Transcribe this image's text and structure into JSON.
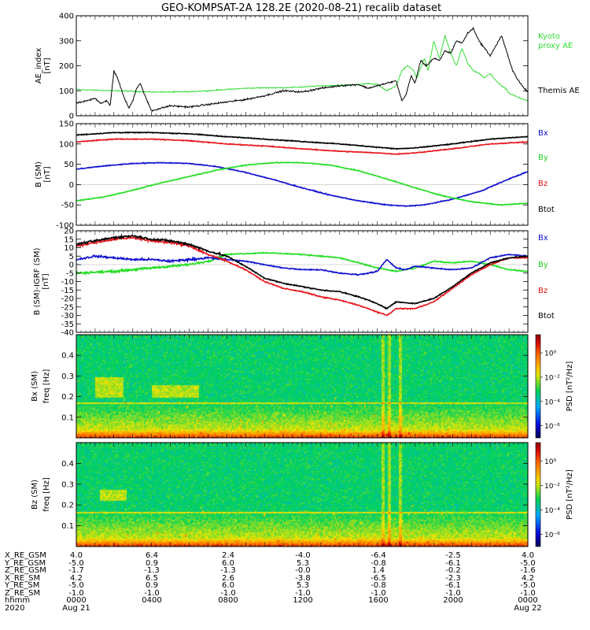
{
  "title": "GEO-KOMPSAT-2A 128.2E (2020-08-21) recalib dataset",
  "colors": {
    "black": "#000000",
    "red": "#e8151b",
    "green": "#22dd22",
    "blue": "#1010d0",
    "kyoto": "#33dd33",
    "label_blue": "#1010d0",
    "label_green": "#22cc22",
    "label_red": "#e01010"
  },
  "chart_data": [
    {
      "type": "line",
      "id": "ae",
      "ylabel": [
        "AE_index",
        "[nT]"
      ],
      "ylim": [
        0,
        400
      ],
      "yticks": [
        0,
        100,
        200,
        300,
        400
      ],
      "x_hours": [
        0,
        24
      ],
      "legend": [
        {
          "label": "Kyoto",
          "color": "kyoto"
        },
        {
          "label": "proxy AE",
          "color": "kyoto"
        },
        {
          "label": "Themis AE",
          "color": "black"
        }
      ],
      "series": [
        {
          "name": "Kyoto proxy AE",
          "color": "kyoto",
          "width": 1,
          "x": [
            0,
            1,
            2,
            3,
            4,
            5,
            6,
            7,
            8,
            9,
            10,
            11,
            12,
            13,
            14,
            15,
            15.5,
            16,
            16.5,
            17,
            17.3,
            17.6,
            17.9,
            18.1,
            18.5,
            18.7,
            19.0,
            19.3,
            19.6,
            19.9,
            20.2,
            20.5,
            20.8,
            21.1,
            21.4,
            21.7,
            22.0,
            22.3,
            22.6,
            22.8,
            23.0,
            23.3,
            23.6,
            24
          ],
          "y": [
            105,
            102,
            100,
            98,
            95,
            95,
            96,
            100,
            105,
            110,
            112,
            112,
            115,
            120,
            122,
            125,
            130,
            125,
            100,
            120,
            180,
            200,
            185,
            150,
            230,
            180,
            300,
            230,
            320,
            250,
            200,
            270,
            210,
            180,
            170,
            150,
            170,
            140,
            120,
            110,
            90,
            80,
            70,
            60
          ]
        },
        {
          "name": "Themis AE",
          "color": "black",
          "width": 1,
          "x": [
            0,
            0.6,
            1,
            1.3,
            1.6,
            1.8,
            2.0,
            2.2,
            2.5,
            2.8,
            3.0,
            3.2,
            3.4,
            3.7,
            4.0,
            5,
            6,
            7,
            8,
            9,
            10,
            11,
            12,
            13,
            14,
            15,
            15.5,
            16,
            16.5,
            17,
            17.3,
            17.5,
            17.8,
            18.0,
            18.3,
            18.6,
            19.0,
            19.3,
            19.6,
            19.9,
            20.2,
            20.5,
            20.8,
            21.1,
            21.4,
            21.7,
            22.0,
            22.3,
            22.6,
            22.9,
            23.2,
            23.5,
            23.8,
            24
          ],
          "y": [
            50,
            60,
            70,
            50,
            60,
            40,
            180,
            150,
            80,
            30,
            60,
            110,
            130,
            70,
            20,
            40,
            35,
            45,
            55,
            65,
            80,
            100,
            95,
            110,
            120,
            125,
            110,
            120,
            130,
            140,
            60,
            80,
            160,
            130,
            220,
            200,
            230,
            220,
            260,
            250,
            300,
            290,
            330,
            350,
            300,
            270,
            240,
            280,
            320,
            250,
            180,
            140,
            110,
            95
          ]
        }
      ]
    },
    {
      "type": "line",
      "id": "bsm",
      "ylabel": [
        "B (SM)",
        "[nT]"
      ],
      "ylim": [
        -100,
        150
      ],
      "yticks": [
        -100,
        -50,
        0,
        50,
        100,
        150
      ],
      "x_hours": [
        0,
        24
      ],
      "legend": [
        {
          "label": "Bx",
          "color": "label_blue"
        },
        {
          "label": "By",
          "color": "label_green"
        },
        {
          "label": "Bz",
          "color": "label_red"
        },
        {
          "label": "Btot",
          "color": "black"
        }
      ],
      "series": [
        {
          "name": "Btot",
          "color": "black",
          "width": 1.6,
          "x": [
            0,
            2,
            4,
            6,
            8,
            10,
            12,
            14,
            16,
            17,
            18,
            20,
            22,
            24
          ],
          "y": [
            122,
            128,
            128,
            125,
            118,
            112,
            106,
            100,
            92,
            88,
            90,
            100,
            112,
            118
          ]
        },
        {
          "name": "Bz",
          "color": "red",
          "width": 1.6,
          "x": [
            0,
            2,
            4,
            6,
            8,
            10,
            12,
            14,
            16,
            17,
            18,
            20,
            22,
            24
          ],
          "y": [
            105,
            112,
            112,
            108,
            100,
            95,
            88,
            82,
            78,
            75,
            78,
            88,
            100,
            105
          ]
        },
        {
          "name": "Bx",
          "color": "blue",
          "width": 1.6,
          "x": [
            0,
            1.5,
            3,
            4.5,
            6,
            7.5,
            9,
            10.5,
            12,
            13.5,
            15,
            16.5,
            17.5,
            18.5,
            20,
            21.5,
            23,
            24
          ],
          "y": [
            38,
            46,
            52,
            54,
            52,
            44,
            30,
            12,
            -8,
            -26,
            -40,
            -50,
            -53,
            -50,
            -36,
            -16,
            14,
            32
          ]
        },
        {
          "name": "By",
          "color": "green",
          "width": 1.6,
          "x": [
            0,
            1.5,
            3,
            4.5,
            6,
            7.5,
            9,
            10.5,
            12,
            13.5,
            15,
            16.5,
            18,
            19.5,
            21,
            22.5,
            24
          ],
          "y": [
            -40,
            -30,
            -14,
            4,
            20,
            36,
            48,
            54,
            54,
            48,
            34,
            14,
            -8,
            -28,
            -42,
            -50,
            -46
          ]
        }
      ]
    },
    {
      "type": "line",
      "id": "dbsm",
      "ylabel": [
        "B (SM)-IGRF (SM)",
        "[nT]"
      ],
      "ylim": [
        -40,
        20
      ],
      "yticks": [
        -40,
        -35,
        -30,
        -25,
        -20,
        -15,
        -10,
        -5,
        0,
        5,
        10,
        15,
        20
      ],
      "x_hours": [
        0,
        24
      ],
      "legend": [
        {
          "label": "Bx",
          "color": "label_blue"
        },
        {
          "label": "By",
          "color": "label_green"
        },
        {
          "label": "Bz",
          "color": "label_red"
        },
        {
          "label": "Btot",
          "color": "black"
        }
      ],
      "series": [
        {
          "name": "By",
          "color": "green",
          "width": 1.6,
          "x": [
            0,
            2,
            4,
            6,
            7,
            8,
            10,
            12,
            14,
            15,
            16,
            17,
            18,
            19,
            20,
            21,
            22,
            23,
            24
          ],
          "y": [
            -5,
            -4,
            -2,
            0,
            2,
            6,
            7,
            6,
            4,
            1,
            -2,
            -4,
            -2,
            2,
            1,
            2,
            0,
            -3,
            -4
          ]
        },
        {
          "name": "Bx",
          "color": "blue",
          "width": 1.6,
          "x": [
            0,
            1,
            2,
            3,
            4,
            5,
            6,
            7,
            8,
            9,
            10,
            11,
            12,
            13,
            14,
            15,
            16,
            16.5,
            17,
            17.5,
            18,
            19,
            20,
            21,
            22,
            23,
            24
          ],
          "y": [
            3,
            5,
            4,
            3,
            3,
            2,
            3,
            4,
            3,
            2,
            0,
            -2,
            -3,
            -3,
            -5,
            -6,
            -4,
            3,
            -2,
            -3,
            -1,
            -2,
            -3,
            -2,
            4,
            6,
            5
          ]
        },
        {
          "name": "Bz",
          "color": "red",
          "width": 1.6,
          "x": [
            0,
            1,
            2,
            3,
            4,
            5,
            6,
            7,
            8,
            9,
            10,
            11,
            12,
            13,
            14,
            15,
            16,
            16.5,
            17,
            18,
            19,
            20,
            21,
            22,
            23,
            24
          ],
          "y": [
            11,
            13,
            15,
            16,
            14,
            13,
            11,
            6,
            2,
            -3,
            -10,
            -14,
            -16,
            -19,
            -21,
            -24,
            -28,
            -30,
            -26,
            -26,
            -22,
            -14,
            -6,
            0,
            4,
            4
          ]
        },
        {
          "name": "Btot",
          "color": "black",
          "width": 1.6,
          "x": [
            0,
            1,
            2,
            3,
            4,
            5,
            6,
            7,
            8,
            9,
            10,
            11,
            12,
            13,
            14,
            15,
            16,
            16.5,
            17,
            18,
            19,
            20,
            21,
            22,
            23,
            24
          ],
          "y": [
            12,
            14,
            16,
            17,
            15,
            14,
            12,
            8,
            5,
            -1,
            -8,
            -11,
            -13,
            -15,
            -16,
            -19,
            -23,
            -26,
            -22,
            -23,
            -20,
            -13,
            -5,
            1,
            4,
            5
          ]
        }
      ]
    },
    {
      "type": "heatmap",
      "id": "spec_bx",
      "component_label": "Bx (SM)",
      "freq_label": "freq [Hz]",
      "colorbar_label": "PSD [nT²/Hz]",
      "ylim": [
        0,
        0.5
      ],
      "yticks": [
        0.1,
        0.2,
        0.3,
        0.4
      ],
      "colorbar_ticks": [
        {
          "label": "10⁰",
          "log": 0
        },
        {
          "label": "10⁻²",
          "log": -2
        },
        {
          "label": "10⁻⁴",
          "log": -4
        },
        {
          "label": "10⁻⁶",
          "log": -6
        }
      ],
      "colorbar_range": [
        -7,
        1.5
      ],
      "enhanced_band_hz": 0.175,
      "activity_patches": [
        [
          1.0,
          2.5,
          0.2,
          0.3
        ],
        [
          4.0,
          6.5,
          0.2,
          0.26
        ]
      ],
      "activity_hours": [
        16.3,
        16.6,
        17.2
      ]
    },
    {
      "type": "heatmap",
      "id": "spec_bz",
      "component_label": "Bz (SM)",
      "freq_label": "freq [Hz]",
      "colorbar_label": "PSD [nT²/Hz]",
      "ylim": [
        0,
        0.5
      ],
      "yticks": [
        0.1,
        0.2,
        0.3,
        0.4
      ],
      "colorbar_ticks": [
        {
          "label": "10⁰",
          "log": 0
        },
        {
          "label": "10⁻²",
          "log": -2
        },
        {
          "label": "10⁻⁴",
          "log": -4
        },
        {
          "label": "10⁻⁶",
          "log": -6
        }
      ],
      "colorbar_range": [
        -7,
        1.5
      ],
      "enhanced_band_hz": 0.17,
      "activity_patches": [
        [
          1.2,
          2.6,
          0.22,
          0.28
        ]
      ],
      "activity_hours": [
        16.3,
        16.6,
        17.2
      ]
    }
  ],
  "orbit_table": {
    "row_labels": [
      "X_RE_GSM",
      "Y_RE_GSM",
      "Z_RE_GSM",
      "X_RE_SM",
      "Y_RE_SM",
      "Z_RE_SM",
      "hhmm",
      "2020"
    ],
    "columns": [
      {
        "values": [
          "4.0",
          "-5.0",
          "-1.7",
          "4.2",
          "-5.0",
          "-1.0",
          "0000",
          "Aug 21"
        ]
      },
      {
        "values": [
          "6.4",
          "0.9",
          "-1.3",
          "6.5",
          "0.9",
          "-1.0",
          "0400",
          ""
        ]
      },
      {
        "values": [
          "2.4",
          "6.0",
          "-1.3",
          "2.6",
          "6.0",
          "-1.0",
          "0800",
          ""
        ]
      },
      {
        "values": [
          "-4.0",
          "5.3",
          "-0.0",
          "-3.8",
          "5.3",
          "-1.0",
          "1200",
          ""
        ]
      },
      {
        "values": [
          "-6.4",
          "-0.8",
          "1.4",
          "-6.5",
          "-0.8",
          "-1.0",
          "1600",
          ""
        ]
      },
      {
        "values": [
          "-2.5",
          "-6.1",
          "-0.2",
          "-2.3",
          "-6.1",
          "-1.0",
          "2000",
          ""
        ]
      },
      {
        "values": [
          "4.0",
          "-5.0",
          "-1.6",
          "4.2",
          "-5.0",
          "-1.0",
          "0000",
          "Aug 22"
        ]
      }
    ]
  }
}
